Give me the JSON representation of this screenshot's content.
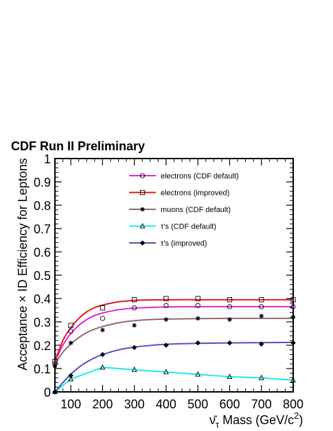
{
  "chart_data": {
    "type": "line",
    "title": "CDF Run II Preliminary",
    "xlabel_symbol": "ν̄",
    "xlabel_subscript": "τ",
    "xlabel_rest": " Mass (GeV/c",
    "xlabel_superscript": "2",
    "xlabel_close": ")",
    "ylabel": "Acceptance × ID Efficiency for Leptons",
    "xlim": [
      50,
      800
    ],
    "ylim": [
      0,
      1
    ],
    "xticks": [
      100,
      200,
      300,
      400,
      500,
      600,
      700,
      800
    ],
    "yticks": [
      0,
      0.1,
      0.2,
      0.3,
      0.4,
      0.5,
      0.6,
      0.7,
      0.8,
      0.9,
      1
    ],
    "ytick_labels": [
      "0",
      "0.1",
      "0.2",
      "0.3",
      "0.4",
      "0.5",
      "0.6",
      "0.7",
      "0.8",
      "0.9",
      "1"
    ],
    "grid": false,
    "legend_position": "top-right",
    "series": [
      {
        "name": "electrons (CDF default)",
        "color": "#e020e0",
        "marker": "circle",
        "x": [
          50,
          100,
          200,
          300,
          400,
          500,
          600,
          700,
          800
        ],
        "y": [
          0.12,
          0.26,
          0.315,
          0.36,
          0.37,
          0.37,
          0.365,
          0.365,
          0.365
        ],
        "curve_x": [
          50,
          75,
          100,
          125,
          150,
          175,
          200,
          250,
          300,
          350,
          400,
          500,
          600,
          700,
          800
        ],
        "curve_y": [
          0.13,
          0.2,
          0.25,
          0.285,
          0.31,
          0.327,
          0.338,
          0.352,
          0.359,
          0.362,
          0.364,
          0.365,
          0.365,
          0.365,
          0.365
        ]
      },
      {
        "name": "electrons (improved)",
        "color": "#e01818",
        "marker": "square",
        "x": [
          50,
          100,
          200,
          300,
          400,
          500,
          600,
          700,
          800
        ],
        "y": [
          0.13,
          0.285,
          0.36,
          0.395,
          0.4,
          0.4,
          0.395,
          0.395,
          0.395
        ],
        "curve_x": [
          50,
          75,
          100,
          125,
          150,
          175,
          200,
          250,
          300,
          350,
          400,
          500,
          600,
          700,
          800
        ],
        "curve_y": [
          0.13,
          0.22,
          0.275,
          0.315,
          0.343,
          0.361,
          0.372,
          0.386,
          0.392,
          0.394,
          0.395,
          0.395,
          0.395,
          0.395,
          0.395
        ]
      },
      {
        "name": "muons (CDF default)",
        "color": "#8f6a6a",
        "marker": "star",
        "x": [
          50,
          100,
          200,
          300,
          400,
          500,
          600,
          700,
          800
        ],
        "y": [
          0.11,
          0.21,
          0.265,
          0.285,
          0.31,
          0.315,
          0.31,
          0.325,
          0.32
        ],
        "curve_x": [
          50,
          75,
          100,
          125,
          150,
          175,
          200,
          250,
          300,
          350,
          400,
          500,
          600,
          700,
          800
        ],
        "curve_y": [
          0.12,
          0.17,
          0.205,
          0.233,
          0.254,
          0.269,
          0.28,
          0.296,
          0.305,
          0.31,
          0.312,
          0.314,
          0.315,
          0.315,
          0.315
        ]
      },
      {
        "name": "τ's  (CDF default)",
        "color": "#20e8e8",
        "marker": "triangle",
        "x": [
          50,
          100,
          200,
          300,
          400,
          500,
          600,
          700,
          800
        ],
        "y": [
          0.0,
          0.055,
          0.105,
          0.095,
          0.085,
          0.075,
          0.065,
          0.06,
          0.05
        ],
        "curve_x": [
          50,
          100,
          200,
          300,
          400,
          500,
          600,
          700,
          800
        ],
        "curve_y": [
          0.0,
          0.055,
          0.105,
          0.095,
          0.085,
          0.075,
          0.065,
          0.06,
          0.05
        ]
      },
      {
        "name": "τ's  (improved)",
        "color": "#5050c0",
        "marker": "diamond",
        "x": [
          50,
          100,
          200,
          300,
          400,
          500,
          600,
          700,
          800
        ],
        "y": [
          0.0,
          0.07,
          0.16,
          0.19,
          0.2,
          0.21,
          0.21,
          0.205,
          0.21
        ],
        "curve_x": [
          50,
          75,
          100,
          125,
          150,
          175,
          200,
          250,
          300,
          350,
          400,
          500,
          600,
          700,
          800
        ],
        "curve_y": [
          0.0,
          0.04,
          0.075,
          0.105,
          0.128,
          0.146,
          0.16,
          0.18,
          0.192,
          0.199,
          0.204,
          0.208,
          0.21,
          0.211,
          0.212
        ]
      }
    ]
  }
}
